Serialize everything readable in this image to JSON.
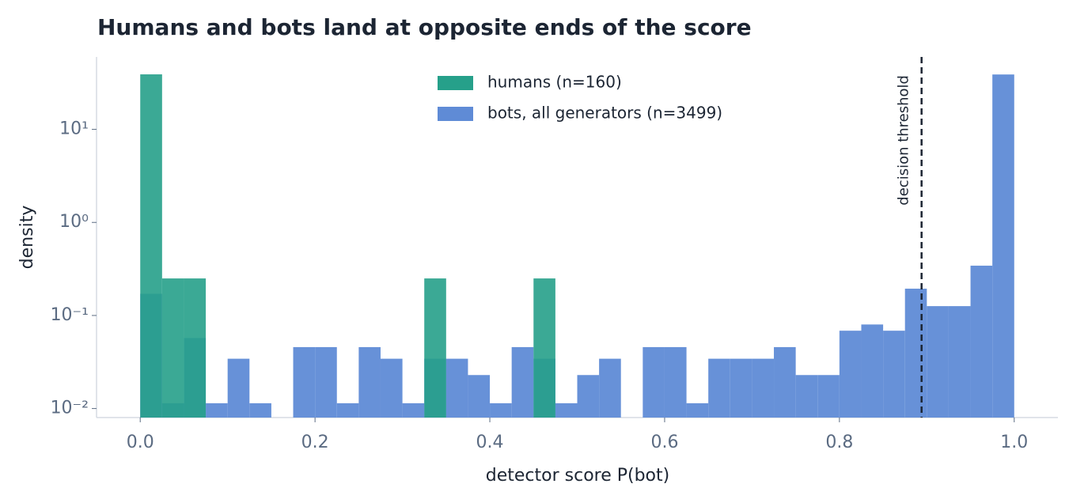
{
  "chart_data": {
    "type": "histogram",
    "title": "Humans and bots land at opposite ends of the score",
    "x_label": "detector score  P(bot)",
    "y_label": "density",
    "log_y": true,
    "legend": "upper center",
    "bins": [
      0,
      0.025,
      0.05,
      0.075,
      0.1,
      0.125,
      0.15,
      0.175,
      0.2,
      0.225,
      0.25,
      0.275,
      0.3,
      0.325,
      0.35,
      0.375,
      0.4,
      0.425,
      0.45,
      0.475,
      0.5,
      0.525,
      0.55,
      0.575,
      0.6,
      0.625,
      0.65,
      0.675,
      0.7,
      0.725,
      0.75,
      0.775,
      0.8,
      0.825,
      0.85,
      0.875,
      0.9,
      0.925,
      0.95,
      0.975,
      1
    ],
    "series": [
      {
        "name": "humans (n=160)",
        "color": "#26a08a",
        "values": [
          39,
          0.25,
          0.25,
          0,
          0,
          0,
          0,
          0,
          0,
          0,
          0,
          0,
          0,
          0.25,
          0,
          0,
          0,
          0,
          0.25,
          0,
          0,
          0,
          0,
          0,
          0,
          0,
          0,
          0,
          0,
          0,
          0,
          0,
          0,
          0,
          0,
          0,
          0,
          0,
          0,
          0
        ]
      },
      {
        "name": "bots, all generators (n=3499)",
        "color": "#5f8bd6",
        "values": [
          0.171,
          0.0114,
          0.0572,
          0.0114,
          0.0343,
          0.0114,
          0,
          0.0457,
          0.0457,
          0.0114,
          0.0457,
          0.0343,
          0.0114,
          0.0343,
          0.0343,
          0.0229,
          0.0114,
          0.0457,
          0.0343,
          0.0114,
          0.0229,
          0.0343,
          0,
          0.0457,
          0.0457,
          0.0114,
          0.0343,
          0.0343,
          0.0343,
          0.0457,
          0.0229,
          0.0229,
          0.0686,
          0.08,
          0.0686,
          0.194,
          0.126,
          0.126,
          0.343,
          38.87
        ]
      }
    ],
    "threshold": 0.894,
    "threshold_label": "decision threshold",
    "xlim": [
      -0.05,
      1.05
    ],
    "xticks": [
      {
        "value": 0,
        "label": "0.0"
      },
      0.2,
      0.4,
      0.6,
      0.8,
      {
        "value": 1,
        "label": "1.0"
      }
    ],
    "ylim": [
      0.008,
      60
    ],
    "yticks": [
      {
        "value": 0.01,
        "label": "10⁻²"
      },
      {
        "value": 0.1,
        "label": "10⁻¹"
      },
      {
        "value": 1,
        "label": "10⁰"
      },
      {
        "value": 10,
        "label": "10¹"
      }
    ]
  }
}
